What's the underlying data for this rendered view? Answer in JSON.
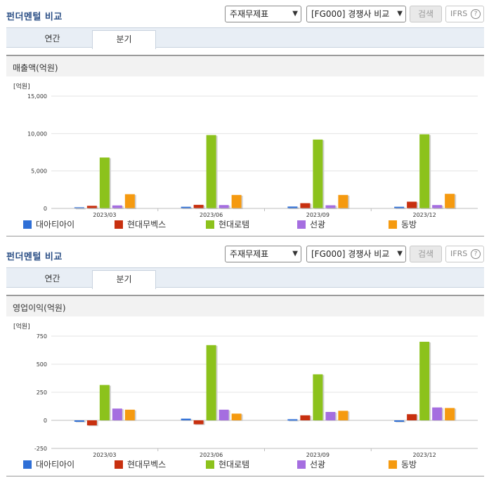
{
  "panels": [
    {
      "title": "펀더멘털 비교",
      "select_statement": "주재무제표",
      "select_group": "[FG000] 경쟁사 비교",
      "search_label": "검색",
      "ifrs_label": "IFRS",
      "help_label": "?",
      "tabs": [
        {
          "label": "연간"
        },
        {
          "label": "분기"
        }
      ],
      "section_label": "매출액(억원)"
    },
    {
      "title": "펀더멘털 비교",
      "select_statement": "주재무제표",
      "select_group": "[FG000] 경쟁사 비교",
      "search_label": "검색",
      "ifrs_label": "IFRS",
      "help_label": "?",
      "tabs": [
        {
          "label": "연간"
        },
        {
          "label": "분기"
        }
      ],
      "section_label": "영업이익(억원)"
    }
  ],
  "colors": {
    "대아티아이": "#2f6fd6",
    "현대무벡스": "#c8300f",
    "현대로템": "#8cc21c",
    "선광": "#a56ee0",
    "동방": "#f59a10"
  },
  "chart_data": [
    {
      "type": "bar",
      "unit_label": "[억원]",
      "categories": [
        "2023/03",
        "2023/06",
        "2023/09",
        "2023/12"
      ],
      "ylim": [
        0,
        15000
      ],
      "yticks": [
        0,
        5000,
        10000,
        15000
      ],
      "ytick_labels": [
        "0",
        "5,000",
        "10,000",
        "15,000"
      ],
      "grid": true,
      "legend_position": "bottom",
      "series": [
        {
          "name": "대아티아이",
          "values": [
            150,
            220,
            250,
            220
          ]
        },
        {
          "name": "현대무벡스",
          "values": [
            350,
            480,
            700,
            900
          ]
        },
        {
          "name": "현대로템",
          "values": [
            6800,
            9800,
            9200,
            9900
          ]
        },
        {
          "name": "선광",
          "values": [
            400,
            450,
            420,
            450
          ]
        },
        {
          "name": "동방",
          "values": [
            1900,
            1800,
            1800,
            1950
          ]
        }
      ]
    },
    {
      "type": "bar",
      "unit_label": "[억원]",
      "categories": [
        "2023/03",
        "2023/06",
        "2023/09",
        "2023/12"
      ],
      "ylim": [
        -250,
        750
      ],
      "yticks": [
        -250,
        0,
        250,
        500,
        750
      ],
      "ytick_labels": [
        "-250",
        "0",
        "250",
        "500",
        "750"
      ],
      "grid": true,
      "legend_position": "bottom",
      "series": [
        {
          "name": "대아티아이",
          "values": [
            -10,
            15,
            10,
            0
          ]
        },
        {
          "name": "현대무벡스",
          "values": [
            -45,
            -35,
            45,
            55
          ]
        },
        {
          "name": "현대로템",
          "values": [
            315,
            670,
            410,
            700
          ]
        },
        {
          "name": "선광",
          "values": [
            105,
            95,
            75,
            115
          ]
        },
        {
          "name": "동방",
          "values": [
            95,
            60,
            85,
            110
          ]
        }
      ]
    }
  ]
}
